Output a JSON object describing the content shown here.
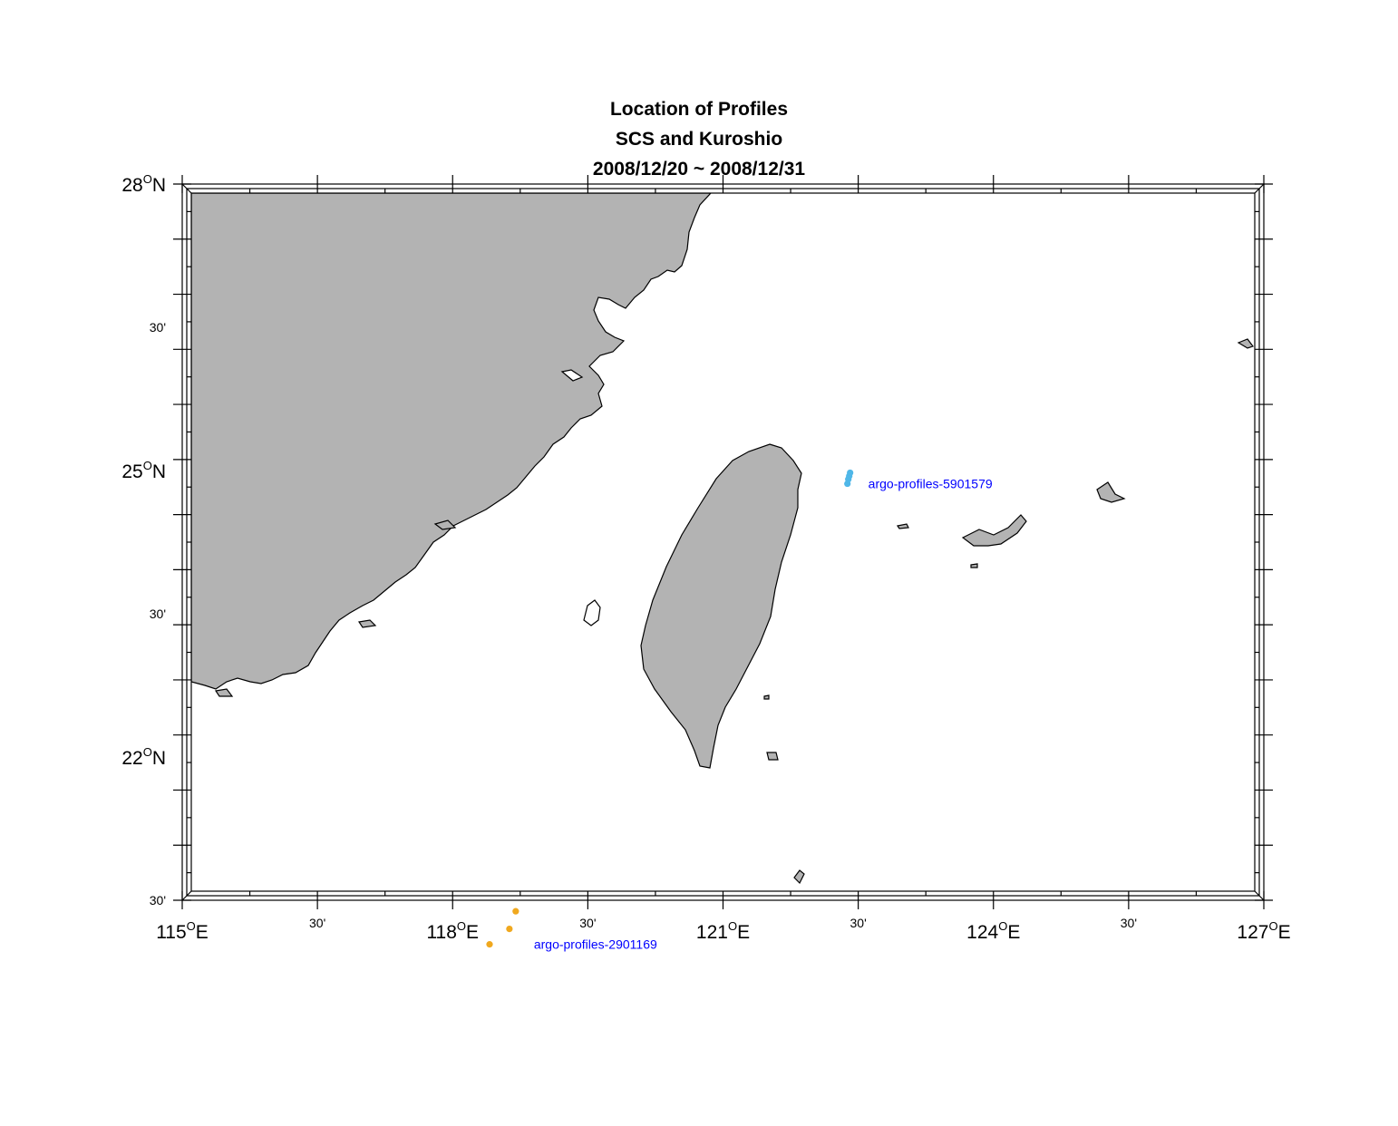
{
  "title": {
    "line1": "Location of Profiles",
    "line2": "SCS and Kuroshio",
    "line3": "2008/12/20 ~ 2008/12/31"
  },
  "map": {
    "extent": {
      "lon": [
        115,
        127
      ],
      "lat": [
        21.5,
        28
      ]
    },
    "land_color": "#b3b3b3",
    "frame_style": "fancy",
    "x_ticks": [
      {
        "base": "115",
        "sup": "O",
        "suf": "E",
        "major": true
      },
      {
        "base": "30'",
        "major": false
      },
      {
        "base": "118",
        "sup": "O",
        "suf": "E",
        "major": true
      },
      {
        "base": "30'",
        "major": false
      },
      {
        "base": "121",
        "sup": "O",
        "suf": "E",
        "major": true
      },
      {
        "base": "30'",
        "major": false
      },
      {
        "base": "124",
        "sup": "O",
        "suf": "E",
        "major": true
      },
      {
        "base": "30'",
        "major": false
      },
      {
        "base": "127",
        "sup": "O",
        "suf": "E",
        "major": true
      }
    ],
    "y_ticks": [
      {
        "base": "30'",
        "major": false
      },
      {
        "base": "22",
        "sup": "O",
        "suf": "N",
        "major": true
      },
      {
        "base": "30'",
        "major": false
      },
      {
        "base": "25",
        "sup": "O",
        "suf": "N",
        "major": true
      },
      {
        "base": "30'",
        "major": false
      },
      {
        "base": "28",
        "sup": "O",
        "suf": "N",
        "major": true
      }
    ],
    "series": [
      {
        "name": "argo-profiles-5901579",
        "color": "#4fb7e8",
        "label_color": "#0000ff",
        "points": [
          {
            "lon": 122.38,
            "lat": 25.28
          },
          {
            "lon": 122.39,
            "lat": 25.32
          },
          {
            "lon": 122.4,
            "lat": 25.35
          },
          {
            "lon": 122.41,
            "lat": 25.38
          }
        ]
      },
      {
        "name": "argo-profiles-2901169",
        "color": "#f0a81e",
        "label_color": "#0000ff",
        "points": [
          {
            "lon": 118.7,
            "lat": 21.4
          },
          {
            "lon": 118.63,
            "lat": 21.24
          },
          {
            "lon": 118.41,
            "lat": 21.1
          }
        ]
      }
    ]
  }
}
